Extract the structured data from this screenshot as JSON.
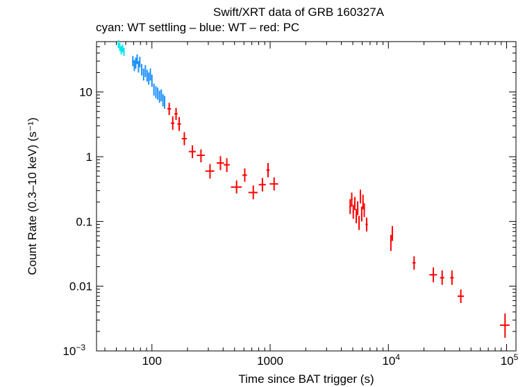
{
  "chart_data": {
    "type": "scatter",
    "title": "Swift/XRT data of GRB 160327A",
    "subtitle": "cyan: WT settling – blue: WT – red: PC",
    "xlabel": "Time since BAT trigger (s)",
    "ylabel": "Count Rate (0.3–10 keV) (s⁻¹)",
    "xscale": "log",
    "yscale": "log",
    "xlim": [
      34,
      120000
    ],
    "ylim": [
      0.001,
      60
    ],
    "xticks": [
      {
        "value": 100,
        "base": "100",
        "exp": ""
      },
      {
        "value": 1000,
        "base": "1000",
        "exp": ""
      },
      {
        "value": 10000,
        "base": "10",
        "exp": "4"
      },
      {
        "value": 100000,
        "base": "10",
        "exp": "5"
      }
    ],
    "yticks": [
      {
        "value": 10,
        "base": "10",
        "exp": ""
      },
      {
        "value": 1,
        "base": "1",
        "exp": ""
      },
      {
        "value": 0.1,
        "base": "0.1",
        "exp": ""
      },
      {
        "value": 0.01,
        "base": "0.01",
        "exp": ""
      },
      {
        "value": 0.001,
        "base": "10",
        "exp": "−3"
      }
    ],
    "series": [
      {
        "name": "WT settling",
        "color": "#00e5ee",
        "points": [
          {
            "x": 52,
            "y": 55,
            "xerr": 0.5,
            "ylo": 48,
            "yhi": 63
          },
          {
            "x": 53.5,
            "y": 50,
            "xerr": 0.5,
            "ylo": 43,
            "yhi": 57
          },
          {
            "x": 55,
            "y": 44,
            "xerr": 0.5,
            "ylo": 38,
            "yhi": 51
          },
          {
            "x": 56.5,
            "y": 47,
            "xerr": 0.5,
            "ylo": 41,
            "yhi": 54
          },
          {
            "x": 58,
            "y": 42,
            "xerr": 0.5,
            "ylo": 36,
            "yhi": 48
          }
        ]
      },
      {
        "name": "WT",
        "color": "#1e90ff",
        "points": [
          {
            "x": 69,
            "y": 30,
            "xerr": 1,
            "ylo": 25,
            "yhi": 36
          },
          {
            "x": 71,
            "y": 26,
            "xerr": 1,
            "ylo": 21,
            "yhi": 31
          },
          {
            "x": 73,
            "y": 28,
            "xerr": 1,
            "ylo": 23,
            "yhi": 34
          },
          {
            "x": 75,
            "y": 32,
            "xerr": 1,
            "ylo": 27,
            "yhi": 38
          },
          {
            "x": 77,
            "y": 25,
            "xerr": 1,
            "ylo": 20,
            "yhi": 30
          },
          {
            "x": 79,
            "y": 29,
            "xerr": 1,
            "ylo": 24,
            "yhi": 35
          },
          {
            "x": 82,
            "y": 22,
            "xerr": 1,
            "ylo": 18,
            "yhi": 27
          },
          {
            "x": 85,
            "y": 19,
            "xerr": 1,
            "ylo": 15,
            "yhi": 23
          },
          {
            "x": 88,
            "y": 21,
            "xerr": 1,
            "ylo": 17,
            "yhi": 26
          },
          {
            "x": 91,
            "y": 18,
            "xerr": 1,
            "ylo": 14.5,
            "yhi": 22
          },
          {
            "x": 94,
            "y": 16,
            "xerr": 1,
            "ylo": 13,
            "yhi": 20
          },
          {
            "x": 97,
            "y": 19,
            "xerr": 1,
            "ylo": 15,
            "yhi": 23
          },
          {
            "x": 100,
            "y": 15,
            "xerr": 1,
            "ylo": 12,
            "yhi": 18.5
          },
          {
            "x": 104,
            "y": 11,
            "xerr": 1.2,
            "ylo": 8.8,
            "yhi": 13.5
          },
          {
            "x": 108,
            "y": 10,
            "xerr": 1.2,
            "ylo": 8,
            "yhi": 12.3
          },
          {
            "x": 112,
            "y": 9.5,
            "xerr": 1.2,
            "ylo": 7.6,
            "yhi": 11.7
          },
          {
            "x": 116,
            "y": 8.5,
            "xerr": 1.2,
            "ylo": 6.8,
            "yhi": 10.5
          },
          {
            "x": 120,
            "y": 9.0,
            "xerr": 1.2,
            "ylo": 7.2,
            "yhi": 11
          },
          {
            "x": 124,
            "y": 7.5,
            "xerr": 1.2,
            "ylo": 6,
            "yhi": 9.3
          },
          {
            "x": 128,
            "y": 7.0,
            "xerr": 1.2,
            "ylo": 5.5,
            "yhi": 8.7
          }
        ]
      },
      {
        "name": "PC",
        "color": "#ff0000",
        "points": [
          {
            "x": 140,
            "y": 5.5,
            "xerr": 5,
            "ylo": 4.4,
            "yhi": 6.8
          },
          {
            "x": 150,
            "y": 3.3,
            "xerr": 5,
            "ylo": 2.6,
            "yhi": 4.2
          },
          {
            "x": 160,
            "y": 4.6,
            "xerr": 5,
            "ylo": 3.7,
            "yhi": 5.7
          },
          {
            "x": 170,
            "y": 3.2,
            "xerr": 6,
            "ylo": 2.5,
            "yhi": 4.1
          },
          {
            "x": 188,
            "y": 1.9,
            "xerr": 9,
            "ylo": 1.5,
            "yhi": 2.4
          },
          {
            "x": 220,
            "y": 1.2,
            "xerr": 15,
            "ylo": 0.95,
            "yhi": 1.5
          },
          {
            "x": 260,
            "y": 1.05,
            "xerr": 20,
            "ylo": 0.82,
            "yhi": 1.3
          },
          {
            "x": 310,
            "y": 0.6,
            "xerr": 27,
            "ylo": 0.46,
            "yhi": 0.77
          },
          {
            "x": 380,
            "y": 0.8,
            "xerr": 27,
            "ylo": 0.62,
            "yhi": 1.02
          },
          {
            "x": 430,
            "y": 0.75,
            "xerr": 25,
            "ylo": 0.58,
            "yhi": 0.95
          },
          {
            "x": 520,
            "y": 0.34,
            "xerr": 55,
            "ylo": 0.27,
            "yhi": 0.43
          },
          {
            "x": 610,
            "y": 0.52,
            "xerr": 27,
            "ylo": 0.41,
            "yhi": 0.66
          },
          {
            "x": 720,
            "y": 0.28,
            "xerr": 65,
            "ylo": 0.22,
            "yhi": 0.36
          },
          {
            "x": 860,
            "y": 0.37,
            "xerr": 60,
            "ylo": 0.29,
            "yhi": 0.47
          },
          {
            "x": 960,
            "y": 0.62,
            "xerr": 30,
            "ylo": 0.48,
            "yhi": 0.8
          },
          {
            "x": 1080,
            "y": 0.38,
            "xerr": 90,
            "ylo": 0.3,
            "yhi": 0.48
          },
          {
            "x": 4750,
            "y": 0.17,
            "xerr": 80,
            "ylo": 0.13,
            "yhi": 0.22
          },
          {
            "x": 4900,
            "y": 0.22,
            "xerr": 80,
            "ylo": 0.17,
            "yhi": 0.28
          },
          {
            "x": 5050,
            "y": 0.14,
            "xerr": 80,
            "ylo": 0.11,
            "yhi": 0.18
          },
          {
            "x": 5200,
            "y": 0.19,
            "xerr": 80,
            "ylo": 0.15,
            "yhi": 0.24
          },
          {
            "x": 5350,
            "y": 0.12,
            "xerr": 80,
            "ylo": 0.094,
            "yhi": 0.155
          },
          {
            "x": 5500,
            "y": 0.16,
            "xerr": 80,
            "ylo": 0.125,
            "yhi": 0.205
          },
          {
            "x": 5650,
            "y": 0.095,
            "xerr": 80,
            "ylo": 0.074,
            "yhi": 0.122
          },
          {
            "x": 5800,
            "y": 0.24,
            "xerr": 80,
            "ylo": 0.19,
            "yhi": 0.31
          },
          {
            "x": 5950,
            "y": 0.13,
            "xerr": 80,
            "ylo": 0.1,
            "yhi": 0.17
          },
          {
            "x": 6100,
            "y": 0.2,
            "xerr": 80,
            "ylo": 0.155,
            "yhi": 0.26
          },
          {
            "x": 6250,
            "y": 0.15,
            "xerr": 80,
            "ylo": 0.117,
            "yhi": 0.19
          },
          {
            "x": 6550,
            "y": 0.09,
            "xerr": 150,
            "ylo": 0.07,
            "yhi": 0.115
          },
          {
            "x": 10500,
            "y": 0.047,
            "xerr": 120,
            "ylo": 0.035,
            "yhi": 0.062
          },
          {
            "x": 10800,
            "y": 0.065,
            "xerr": 120,
            "ylo": 0.05,
            "yhi": 0.085
          },
          {
            "x": 16500,
            "y": 0.023,
            "xerr": 500,
            "ylo": 0.018,
            "yhi": 0.029
          },
          {
            "x": 24000,
            "y": 0.015,
            "xerr": 1800,
            "ylo": 0.0115,
            "yhi": 0.0195
          },
          {
            "x": 28500,
            "y": 0.0135,
            "xerr": 1200,
            "ylo": 0.0105,
            "yhi": 0.0175
          },
          {
            "x": 34500,
            "y": 0.0135,
            "xerr": 1200,
            "ylo": 0.0105,
            "yhi": 0.0175
          },
          {
            "x": 41000,
            "y": 0.007,
            "xerr": 2500,
            "ylo": 0.0055,
            "yhi": 0.0089
          },
          {
            "x": 97000,
            "y": 0.0025,
            "xerr": 9000,
            "ylo": 0.0016,
            "yhi": 0.0038
          }
        ]
      }
    ]
  }
}
